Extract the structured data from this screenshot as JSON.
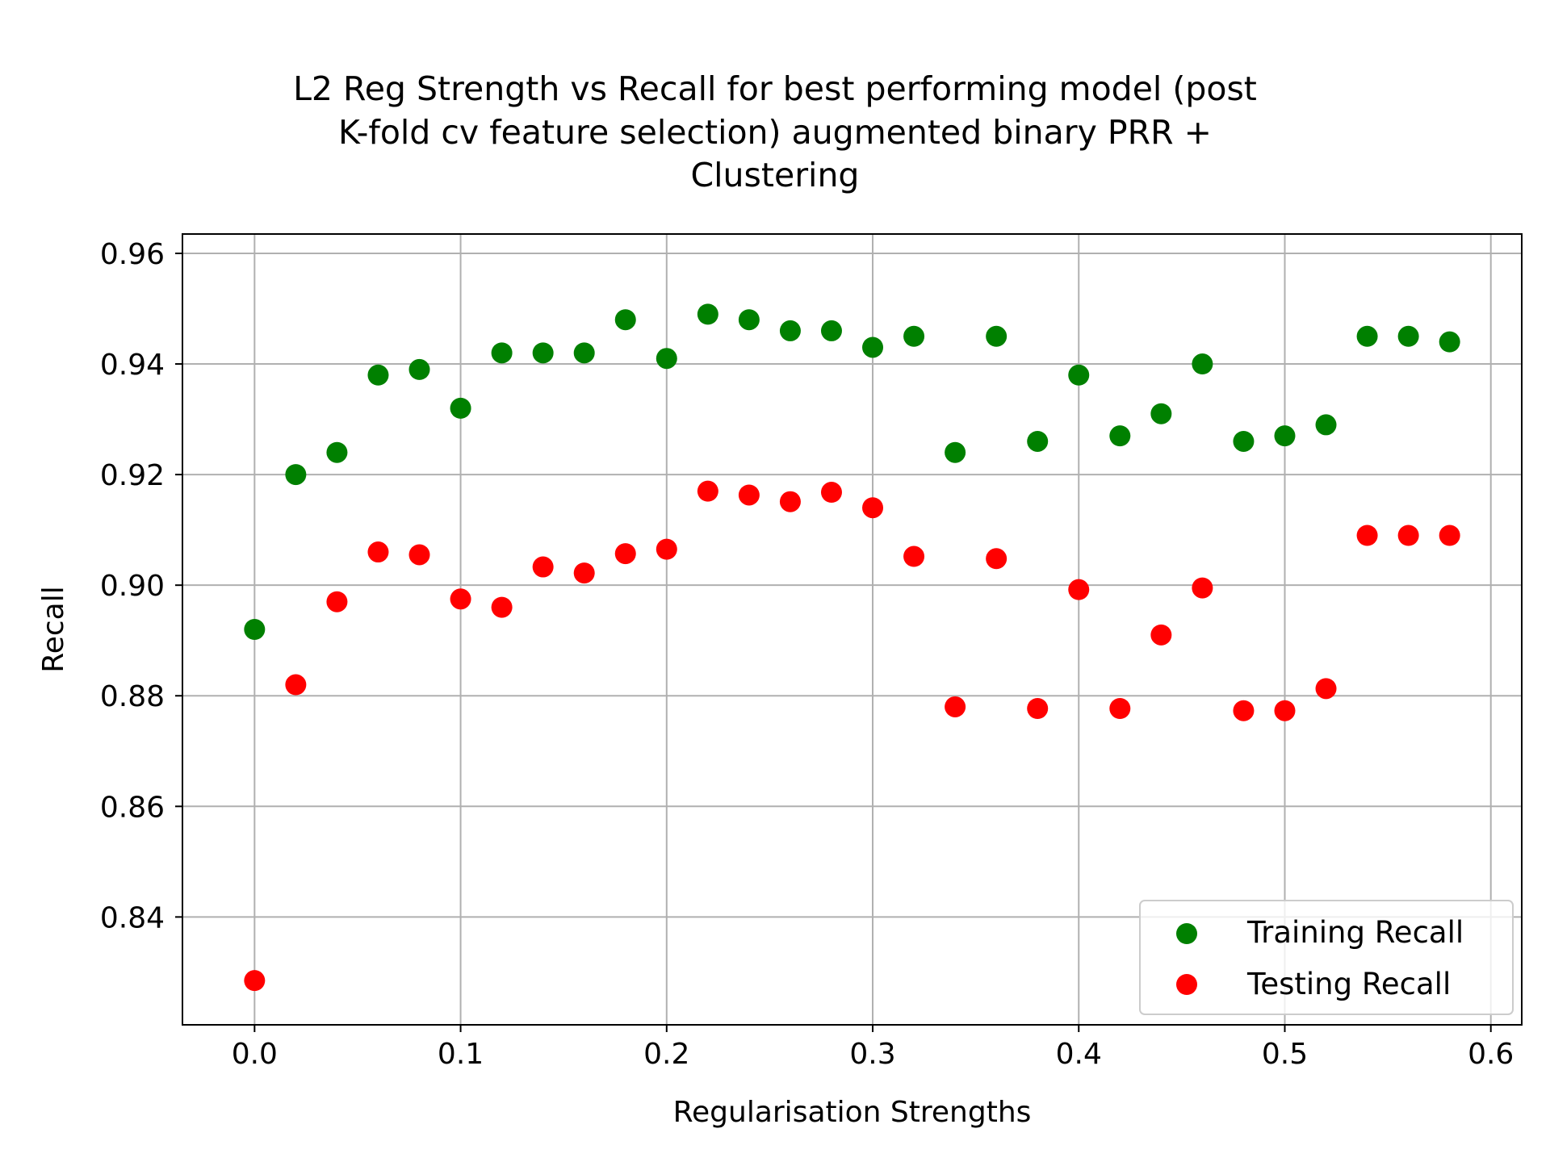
{
  "chart_data": {
    "type": "scatter",
    "title_lines": [
      "L2 Reg Strength vs Recall for best performing model (post",
      "K-fold cv feature selection) augmented binary PRR +",
      "Clustering"
    ],
    "xlabel": "Regularisation Strengths",
    "ylabel": "Recall",
    "xlim": [
      -0.035,
      0.615
    ],
    "ylim": [
      0.8205,
      0.9635
    ],
    "xticks": [
      0.0,
      0.1,
      0.2,
      0.3,
      0.4,
      0.5,
      0.6
    ],
    "xtick_labels": [
      "0.0",
      "0.1",
      "0.2",
      "0.3",
      "0.4",
      "0.5",
      "0.6"
    ],
    "yticks": [
      0.84,
      0.86,
      0.88,
      0.9,
      0.92,
      0.94,
      0.96
    ],
    "ytick_labels": [
      "0.84",
      "0.86",
      "0.88",
      "0.90",
      "0.92",
      "0.94",
      "0.96"
    ],
    "grid": true,
    "legend_position": "bottom-right",
    "x": [
      0.0,
      0.02,
      0.04,
      0.06,
      0.08,
      0.1,
      0.12,
      0.14,
      0.16,
      0.18,
      0.2,
      0.22,
      0.24,
      0.26,
      0.28,
      0.3,
      0.32,
      0.34,
      0.36,
      0.38,
      0.4,
      0.42,
      0.44,
      0.46,
      0.48,
      0.5,
      0.52,
      0.54,
      0.56,
      0.58
    ],
    "series": [
      {
        "name": "Training Recall",
        "color": "#008000",
        "values": [
          0.892,
          0.92,
          0.924,
          0.938,
          0.939,
          0.932,
          0.942,
          0.942,
          0.942,
          0.948,
          0.941,
          0.949,
          0.948,
          0.946,
          0.946,
          0.943,
          0.945,
          0.924,
          0.945,
          0.926,
          0.938,
          0.927,
          0.931,
          0.94,
          0.926,
          0.927,
          0.929,
          0.945,
          0.945,
          0.944
        ]
      },
      {
        "name": "Testing Recall",
        "color": "#ff0000",
        "values": [
          0.8285,
          0.882,
          0.897,
          0.906,
          0.9055,
          0.8975,
          0.896,
          0.9033,
          0.9022,
          0.9057,
          0.9065,
          0.917,
          0.9163,
          0.9151,
          0.9168,
          0.914,
          0.9052,
          0.878,
          0.9048,
          0.8777,
          0.8992,
          0.8777,
          0.891,
          0.8995,
          0.8773,
          0.8773,
          0.8813,
          0.909,
          0.909,
          0.909
        ]
      }
    ]
  }
}
